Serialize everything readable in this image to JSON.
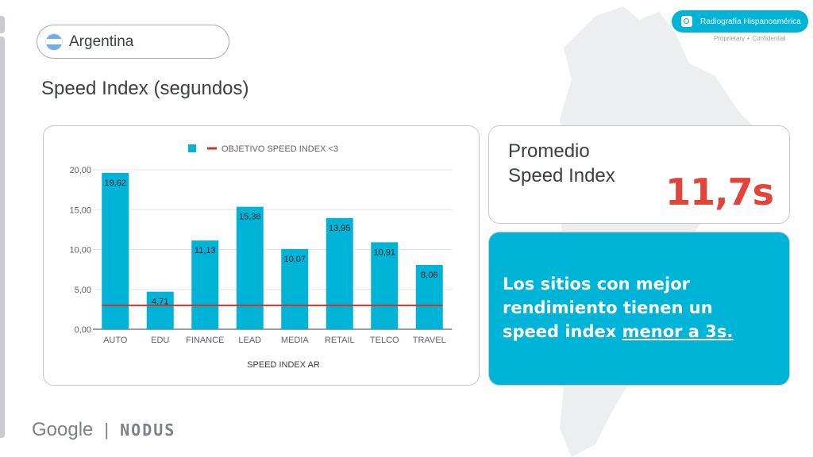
{
  "country": {
    "name": "Argentina"
  },
  "page_title": "Speed Index (segundos)",
  "brand": {
    "label": "Radiografía Hispanoamérica",
    "confidential": "Proprietary + Confidential"
  },
  "average": {
    "label_line1": "Promedio",
    "label_line2": "Speed Index",
    "value": "11,7s"
  },
  "insight": {
    "text_main": "Los sitios con mejor rendimiento tienen un speed index ",
    "text_underlined": "menor a 3s."
  },
  "footer": {
    "google": "Google",
    "separator": "|",
    "partner": "NODUS"
  },
  "colors": {
    "accent": "#00b4d8",
    "target_line": "#d93025",
    "avg_value": "#e0443a"
  },
  "chart_data": {
    "type": "bar",
    "categories": [
      "AUTO",
      "EDU",
      "FINANCE",
      "LEAD",
      "MEDIA",
      "RETAIL",
      "TELCO",
      "TRAVEL"
    ],
    "values": [
      19.62,
      4.71,
      11.13,
      15.36,
      10.07,
      13.95,
      10.91,
      8.06
    ],
    "value_labels": [
      "19,62",
      "4,71",
      "11,13",
      "15,36",
      "10,07",
      "13,95",
      "10,91",
      "8,06"
    ],
    "target": {
      "name": "OBJETIVO SPEED INDEX <3",
      "value": 3
    },
    "xlabel": "SPEED INDEX AR",
    "ylabel": "",
    "ylim": [
      0,
      20
    ],
    "yticks": [
      "0,00",
      "5,00",
      "10,00",
      "15,00",
      "20,00"
    ],
    "legend": "top",
    "grid": true
  }
}
